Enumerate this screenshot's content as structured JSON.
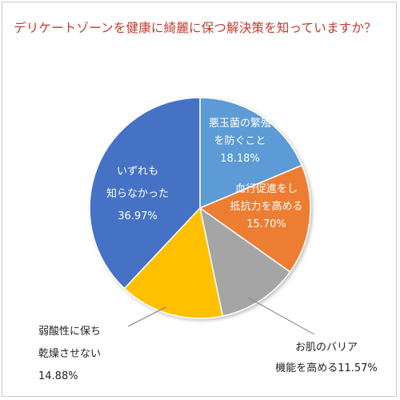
{
  "chart_data": {
    "type": "pie",
    "title": "デリケートゾーンを健康に綺麗に保つ解決策を知っていますか？",
    "slices": [
      {
        "lines": [
          "悪玉菌の繁殖",
          "を防ぐこと",
          "18.18%"
        ],
        "value": 18.18,
        "color": "#5b9bd5",
        "text_color": "#ffffff"
      },
      {
        "lines": [
          "血行促進をし",
          "抵抗力を高める",
          "15.70%"
        ],
        "value": 15.7,
        "color": "#ed7d31",
        "text_color": "#ffffff"
      },
      {
        "lines": [
          "お肌のバリア",
          "機能を高める11.57%"
        ],
        "value": 11.57,
        "color": "#a5a5a5",
        "text_color": "#222222"
      },
      {
        "lines": [
          "弱酸性に保ち",
          "乾燥させない",
          "14.88%"
        ],
        "value": 14.88,
        "color": "#ffc000",
        "text_color": "#222222"
      },
      {
        "lines": [
          "いずれも",
          "知らなかった",
          "36.97%"
        ],
        "value": 36.97,
        "color": "#4472c4",
        "text_color": "#ffffff"
      }
    ],
    "start_angle_deg": 0,
    "direction": "clockwise",
    "legend": "none"
  }
}
